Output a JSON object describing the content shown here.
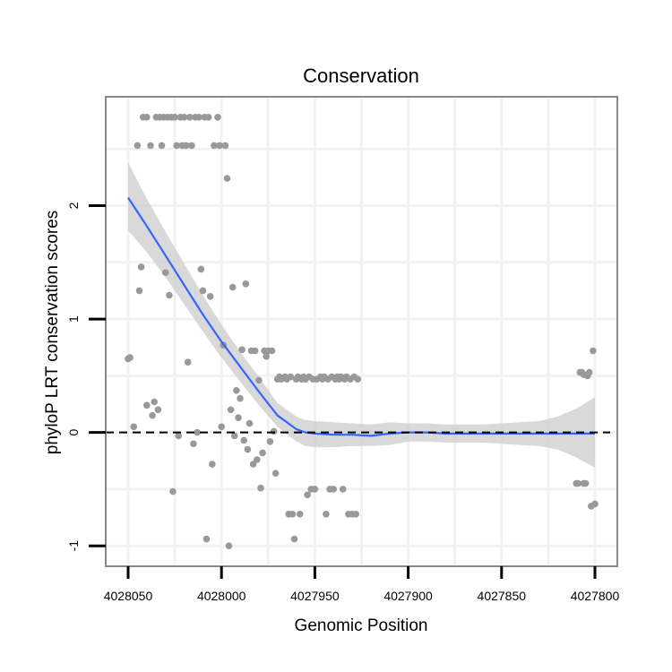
{
  "chart_data": {
    "type": "scatter",
    "title": "Conservation",
    "xlabel": "Genomic Position",
    "ylabel": "phyloP LRT conservation scores",
    "x_reversed": true,
    "xlim": [
      4028062,
      4027788
    ],
    "ylim": [
      -1.18,
      2.96
    ],
    "x_ticks": [
      4028050,
      4028000,
      4027950,
      4027900,
      4027850,
      4027800
    ],
    "x_tick_labels": [
      "4028050",
      "4028000",
      "4027950",
      "4027900",
      "4027850",
      "4027800"
    ],
    "y_ticks": [
      -1,
      0,
      1,
      2
    ],
    "y_tick_labels": [
      "-1",
      "0",
      "1",
      "2"
    ],
    "reference_line": {
      "y": 0,
      "style": "dashed"
    },
    "colors": {
      "points": "#999999",
      "smooth": "#3366FF",
      "ribbon": "#CCCCCC",
      "panel_border": "#888888",
      "grid": "#F2F2F2"
    },
    "points": [
      [
        4028050,
        0.65
      ],
      [
        4028049,
        0.66
      ],
      [
        4028047,
        0.05
      ],
      [
        4028045,
        2.53
      ],
      [
        4028044,
        1.25
      ],
      [
        4028043,
        1.46
      ],
      [
        4028042,
        2.78
      ],
      [
        4028040,
        0.24
      ],
      [
        4028040,
        2.78
      ],
      [
        4028038,
        2.53
      ],
      [
        4028037,
        0.15
      ],
      [
        4028036,
        0.27
      ],
      [
        4028035,
        2.78
      ],
      [
        4028034,
        0.2
      ],
      [
        4028033,
        2.78
      ],
      [
        4028032,
        2.53
      ],
      [
        4028031,
        2.78
      ],
      [
        4028030,
        1.41
      ],
      [
        4028029,
        2.78
      ],
      [
        4028028,
        1.21
      ],
      [
        4028027,
        2.78
      ],
      [
        4028026,
        -0.52
      ],
      [
        4028025,
        2.78
      ],
      [
        4028024,
        2.53
      ],
      [
        4028023,
        -0.03
      ],
      [
        4028022,
        2.78
      ],
      [
        4028021,
        2.53
      ],
      [
        4028020,
        2.78
      ],
      [
        4028019,
        2.53
      ],
      [
        4028018,
        0.62
      ],
      [
        4028017,
        2.78
      ],
      [
        4028016,
        2.53
      ],
      [
        4028015,
        -0.1
      ],
      [
        4028014,
        2.78
      ],
      [
        4028013,
        0.0
      ],
      [
        4028012,
        2.78
      ],
      [
        4028011,
        1.44
      ],
      [
        4028010,
        1.25
      ],
      [
        4028009,
        2.78
      ],
      [
        4028008,
        -0.94
      ],
      [
        4028007,
        2.78
      ],
      [
        4028006,
        1.2
      ],
      [
        4028005,
        -0.28
      ],
      [
        4028004,
        2.53
      ],
      [
        4028002,
        2.78
      ],
      [
        4028001,
        2.53
      ],
      [
        4028000,
        0.05
      ],
      [
        4027999,
        0.77
      ],
      [
        4027998,
        2.53
      ],
      [
        4027997,
        2.24
      ],
      [
        4027996,
        -1.0
      ],
      [
        4027995,
        0.2
      ],
      [
        4027994,
        1.28
      ],
      [
        4027993,
        -0.03
      ],
      [
        4027992,
        0.37
      ],
      [
        4027991,
        0.13
      ],
      [
        4027990,
        0.3
      ],
      [
        4027989,
        0.73
      ],
      [
        4027988,
        -0.07
      ],
      [
        4027987,
        1.31
      ],
      [
        4027986,
        -0.15
      ],
      [
        4027985,
        0.08
      ],
      [
        4027984,
        0.72
      ],
      [
        4027983,
        -0.28
      ],
      [
        4027982,
        0.72
      ],
      [
        4027981,
        -0.24
      ],
      [
        4027980,
        0.46
      ],
      [
        4027979,
        -0.49
      ],
      [
        4027978,
        -0.18
      ],
      [
        4027977,
        0.72
      ],
      [
        4027976,
        0.67
      ],
      [
        4027975,
        0.72
      ],
      [
        4027974,
        -0.08
      ],
      [
        4027973,
        0.72
      ],
      [
        4027972,
        0.01
      ],
      [
        4027971,
        -0.36
      ],
      [
        4027970,
        0.47
      ],
      [
        4027969,
        0.49
      ],
      [
        4027968,
        0.47
      ],
      [
        4027966,
        0.49
      ],
      [
        4027965,
        0.47
      ],
      [
        4027964,
        -0.72
      ],
      [
        4027963,
        0.49
      ],
      [
        4027962,
        -0.72
      ],
      [
        4027961,
        -0.94
      ],
      [
        4027960,
        0.47
      ],
      [
        4027959,
        0.49
      ],
      [
        4027958,
        -0.72
      ],
      [
        4027957,
        0.47
      ],
      [
        4027956,
        0.49
      ],
      [
        4027955,
        0.47
      ],
      [
        4027954,
        -0.55
      ],
      [
        4027953,
        0.49
      ],
      [
        4027952,
        -0.5
      ],
      [
        4027951,
        0.47
      ],
      [
        4027950,
        -0.5
      ],
      [
        4027949,
        0.47
      ],
      [
        4027947,
        0.49
      ],
      [
        4027946,
        0.47
      ],
      [
        4027945,
        0.49
      ],
      [
        4027944,
        -0.72
      ],
      [
        4027943,
        0.47
      ],
      [
        4027942,
        -0.5
      ],
      [
        4027941,
        0.49
      ],
      [
        4027940,
        -0.5
      ],
      [
        4027939,
        0.47
      ],
      [
        4027938,
        0.49
      ],
      [
        4027937,
        0.47
      ],
      [
        4027936,
        0.49
      ],
      [
        4027935,
        -0.5
      ],
      [
        4027934,
        0.47
      ],
      [
        4027933,
        0.49
      ],
      [
        4027932,
        -0.72
      ],
      [
        4027931,
        0.47
      ],
      [
        4027930,
        -0.72
      ],
      [
        4027929,
        0.49
      ],
      [
        4027928,
        -0.72
      ],
      [
        4027927,
        0.47
      ],
      [
        4027810,
        -0.45
      ],
      [
        4027809,
        -0.45
      ],
      [
        4027808,
        0.53
      ],
      [
        4027807,
        0.53
      ],
      [
        4027806,
        -0.45
      ],
      [
        4027806,
        0.51
      ],
      [
        4027805,
        -0.45
      ],
      [
        4027804,
        0.5
      ],
      [
        4027803,
        0.53
      ],
      [
        4027802,
        -0.65
      ],
      [
        4027801,
        0.72
      ],
      [
        4027800,
        -0.63
      ]
    ],
    "smooth": {
      "x": [
        4028050,
        4028040,
        4028030,
        4028020,
        4028010,
        4028000,
        4027990,
        4027980,
        4027970,
        4027960,
        4027955,
        4027950,
        4027940,
        4027930,
        4027920,
        4027910,
        4027900,
        4027890,
        4027880,
        4027870,
        4027860,
        4027850,
        4027840,
        4027830,
        4027820,
        4027810,
        4027800
      ],
      "y": [
        2.07,
        1.82,
        1.56,
        1.3,
        1.04,
        0.8,
        0.58,
        0.36,
        0.15,
        0.03,
        0.0,
        -0.01,
        -0.02,
        -0.02,
        -0.03,
        -0.01,
        0.0,
        0.0,
        -0.01,
        -0.01,
        -0.01,
        -0.01,
        -0.01,
        -0.01,
        -0.01,
        -0.01,
        -0.01
      ],
      "lower": [
        1.78,
        1.59,
        1.37,
        1.13,
        0.89,
        0.66,
        0.45,
        0.24,
        0.05,
        -0.08,
        -0.12,
        -0.13,
        -0.13,
        -0.12,
        -0.12,
        -0.11,
        -0.08,
        -0.08,
        -0.09,
        -0.09,
        -0.09,
        -0.1,
        -0.11,
        -0.12,
        -0.15,
        -0.22,
        -0.31
      ],
      "upper": [
        2.38,
        2.06,
        1.77,
        1.49,
        1.21,
        0.95,
        0.71,
        0.49,
        0.26,
        0.14,
        0.11,
        0.1,
        0.09,
        0.08,
        0.07,
        0.09,
        0.08,
        0.08,
        0.07,
        0.07,
        0.07,
        0.08,
        0.09,
        0.1,
        0.14,
        0.21,
        0.31
      ]
    }
  }
}
